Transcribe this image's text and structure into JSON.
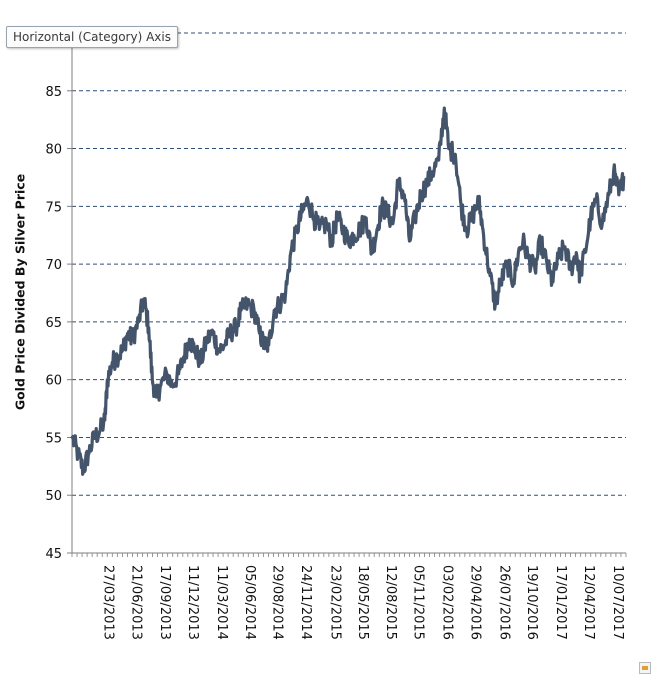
{
  "tooltip": {
    "text": "Horizontal (Category) Axis"
  },
  "chart_data": {
    "type": "line",
    "title": "",
    "xlabel": "",
    "ylabel": "Gold Price Divided By Silver Price",
    "ylim": [
      45,
      90
    ],
    "yticks": [
      45,
      50,
      55,
      60,
      65,
      70,
      75,
      80,
      85
    ],
    "grid": "horizontal-dashed",
    "legend": "none",
    "x_tick_labels": [
      "27/03/2013",
      "21/06/2013",
      "17/09/2013",
      "11/12/2013",
      "11/03/2014",
      "05/06/2014",
      "29/08/2014",
      "24/11/2014",
      "23/02/2015",
      "18/05/2015",
      "12/08/2015",
      "05/11/2015",
      "03/02/2016",
      "29/04/2016",
      "26/07/2016",
      "19/10/2016",
      "17/01/2017",
      "12/04/2017",
      "10/07/2017"
    ],
    "x_start": "01/01/2013",
    "x_end": "01/09/2017",
    "line_color": "#44546a",
    "series": [
      {
        "name": "",
        "x": [
          "2013-01-02",
          "2013-01-20",
          "2013-02-05",
          "2013-02-20",
          "2013-03-10",
          "2013-03-27",
          "2013-04-12",
          "2013-04-20",
          "2013-05-05",
          "2013-05-20",
          "2013-06-05",
          "2013-06-21",
          "2013-07-05",
          "2013-07-25",
          "2013-08-10",
          "2013-08-25",
          "2013-09-05",
          "2013-09-17",
          "2013-10-01",
          "2013-10-20",
          "2013-11-05",
          "2013-11-25",
          "2013-12-11",
          "2013-12-28",
          "2014-01-15",
          "2014-02-01",
          "2014-02-20",
          "2014-03-11",
          "2014-03-28",
          "2014-04-15",
          "2014-05-01",
          "2014-05-20",
          "2014-06-05",
          "2014-06-25",
          "2014-07-15",
          "2014-08-01",
          "2014-08-15",
          "2014-08-29",
          "2014-09-15",
          "2014-10-01",
          "2014-10-20",
          "2014-11-05",
          "2014-11-24",
          "2014-12-10",
          "2014-12-28",
          "2015-01-15",
          "2015-02-01",
          "2015-02-23",
          "2015-03-10",
          "2015-03-28",
          "2015-04-15",
          "2015-05-01",
          "2015-05-18",
          "2015-06-05",
          "2015-06-25",
          "2015-07-12",
          "2015-07-28",
          "2015-08-12",
          "2015-08-28",
          "2015-09-15",
          "2015-10-01",
          "2015-10-20",
          "2015-11-05",
          "2015-11-22",
          "2015-12-10",
          "2015-12-28",
          "2016-01-15",
          "2016-02-03",
          "2016-02-20",
          "2016-03-05",
          "2016-03-25",
          "2016-04-12",
          "2016-04-29",
          "2016-05-15",
          "2016-06-05",
          "2016-06-20",
          "2016-07-10",
          "2016-07-26",
          "2016-08-12",
          "2016-09-01",
          "2016-09-20",
          "2016-10-05",
          "2016-10-19",
          "2016-11-05",
          "2016-11-25",
          "2016-12-12",
          "2017-01-01",
          "2017-01-17",
          "2017-02-05",
          "2017-02-25",
          "2017-03-15",
          "2017-04-01",
          "2017-04-12",
          "2017-04-28",
          "2017-05-15",
          "2017-06-01",
          "2017-06-20",
          "2017-07-10",
          "2017-07-25",
          "2017-08-10",
          "2017-08-25"
        ],
        "values": [
          55.0,
          53.5,
          52.2,
          53.5,
          55.0,
          55.5,
          56.5,
          60.0,
          61.5,
          62.0,
          62.5,
          64.0,
          63.5,
          65.0,
          67.0,
          64.5,
          60.0,
          58.5,
          59.5,
          60.5,
          59.5,
          60.5,
          62.0,
          63.5,
          62.5,
          61.5,
          63.5,
          64.0,
          62.5,
          63.0,
          64.0,
          64.5,
          66.0,
          66.5,
          66.0,
          64.0,
          63.0,
          63.0,
          66.0,
          66.5,
          67.5,
          71.0,
          73.0,
          74.5,
          75.5,
          74.0,
          73.0,
          73.5,
          72.0,
          74.0,
          73.0,
          72.0,
          72.5,
          73.0,
          74.0,
          71.0,
          73.0,
          75.0,
          74.5,
          73.5,
          77.0,
          76.0,
          72.0,
          74.0,
          76.0,
          77.0,
          78.0,
          79.0,
          83.5,
          80.0,
          79.5,
          75.0,
          73.0,
          74.0,
          75.5,
          72.5,
          69.0,
          66.5,
          68.5,
          70.0,
          68.5,
          71.0,
          72.0,
          70.5,
          69.5,
          72.0,
          70.0,
          68.5,
          70.5,
          71.5,
          69.5,
          71.0,
          69.0,
          71.0,
          74.0,
          75.5,
          73.5,
          76.0,
          78.0,
          76.0,
          77.5
        ]
      }
    ]
  }
}
